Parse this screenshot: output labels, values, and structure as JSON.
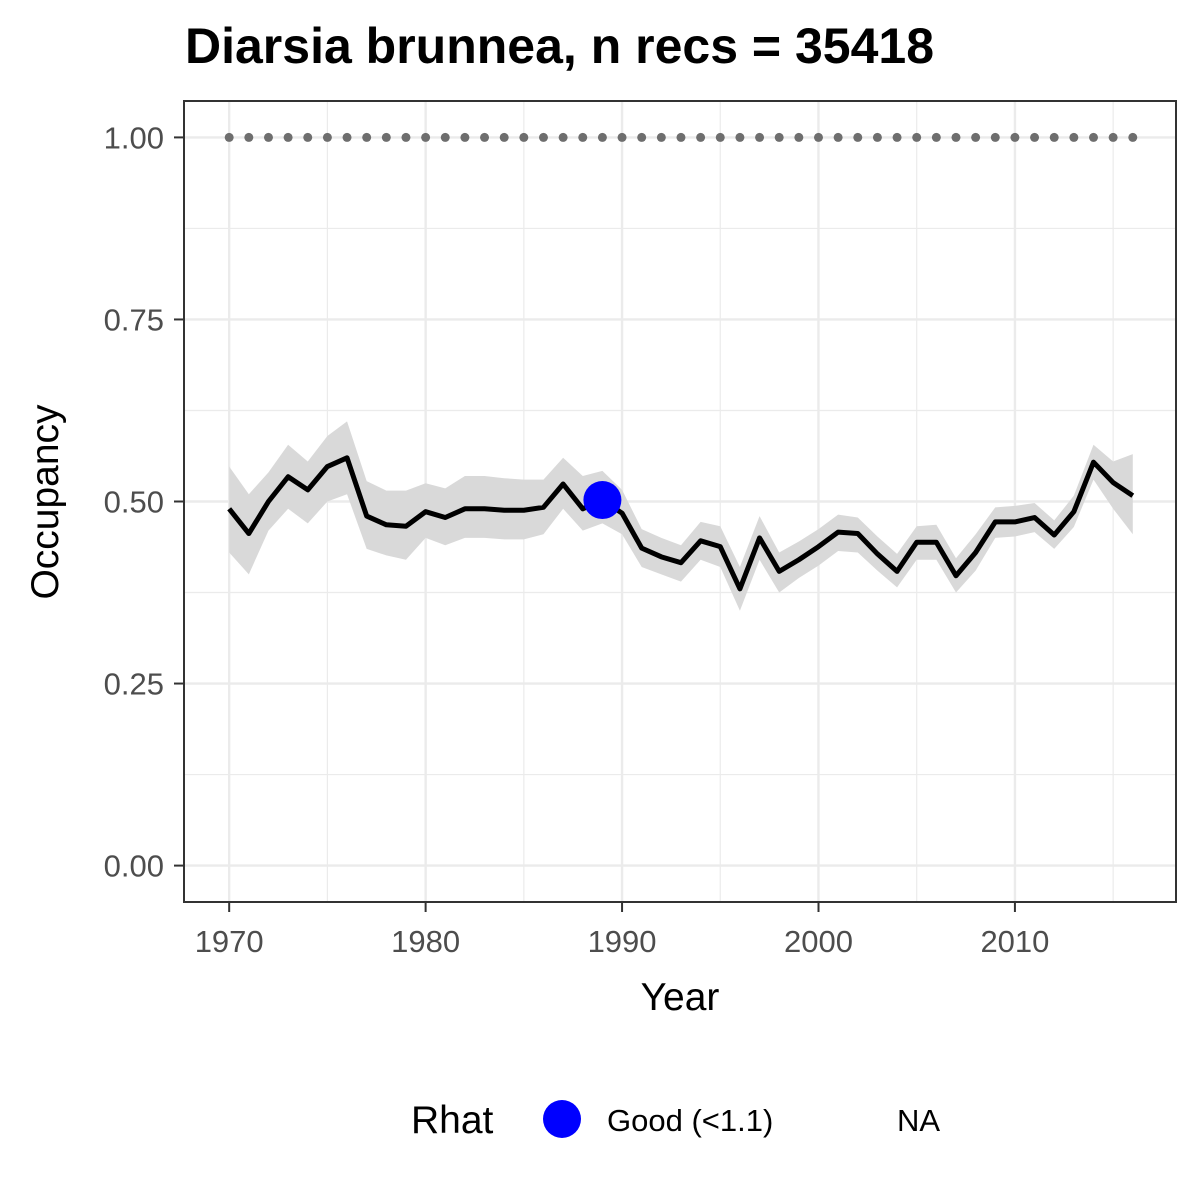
{
  "chart_data": {
    "type": "line",
    "title": "Diarsia brunnea, n recs = 35418",
    "xlabel": "Year",
    "ylabel": "Occupancy",
    "xlim": [
      1967.7,
      2018.2
    ],
    "ylim": [
      -0.05,
      1.05
    ],
    "x_ticks": [
      1970,
      1980,
      1990,
      2000,
      2010
    ],
    "x_tick_labels": [
      "1970",
      "1980",
      "1990",
      "2000",
      "2010"
    ],
    "y_ticks": [
      0,
      0.25,
      0.5,
      0.75,
      1.0
    ],
    "y_tick_labels": [
      "0.00",
      "0.25",
      "0.50",
      "0.75",
      "1.00"
    ],
    "grid": true,
    "colors": {
      "line": "#000000",
      "ribbon": "#d9d9d9",
      "reference": "#6e6e6e",
      "rhat_good": "#0000ff",
      "grid_major": "#ebebeb",
      "panel_border": "#333333"
    },
    "series": [
      {
        "years": [
          1970,
          1971,
          1972,
          1973,
          1974,
          1975,
          1976,
          1977,
          1978,
          1979,
          1980,
          1981,
          1982,
          1983,
          1984,
          1985,
          1986,
          1987,
          1988,
          1989,
          1990,
          1991,
          1992,
          1993,
          1994,
          1995,
          1996,
          1997,
          1998,
          1999,
          2000,
          2001,
          2002,
          2003,
          2004,
          2005,
          2006,
          2007,
          2008,
          2009,
          2010,
          2011,
          2012,
          2013,
          2014,
          2015,
          2016
        ],
        "mean": [
          0.49,
          0.456,
          0.5,
          0.534,
          0.516,
          0.548,
          0.56,
          0.48,
          0.468,
          0.466,
          0.486,
          0.478,
          0.49,
          0.49,
          0.488,
          0.488,
          0.492,
          0.524,
          0.49,
          0.502,
          0.484,
          0.436,
          0.424,
          0.416,
          0.446,
          0.438,
          0.38,
          0.45,
          0.404,
          0.42,
          0.438,
          0.458,
          0.456,
          0.428,
          0.404,
          0.444,
          0.444,
          0.398,
          0.43,
          0.472,
          0.472,
          0.478,
          0.454,
          0.486,
          0.554,
          0.526,
          0.508
        ],
        "lower": [
          0.43,
          0.4,
          0.46,
          0.49,
          0.47,
          0.5,
          0.51,
          0.435,
          0.426,
          0.42,
          0.45,
          0.44,
          0.45,
          0.45,
          0.448,
          0.448,
          0.455,
          0.49,
          0.46,
          0.47,
          0.455,
          0.41,
          0.4,
          0.39,
          0.42,
          0.41,
          0.35,
          0.42,
          0.375,
          0.395,
          0.412,
          0.432,
          0.43,
          0.405,
          0.382,
          0.42,
          0.42,
          0.375,
          0.405,
          0.45,
          0.452,
          0.458,
          0.435,
          0.465,
          0.53,
          0.49,
          0.455
        ],
        "upper": [
          0.548,
          0.51,
          0.54,
          0.578,
          0.555,
          0.59,
          0.61,
          0.528,
          0.515,
          0.515,
          0.525,
          0.518,
          0.535,
          0.535,
          0.532,
          0.53,
          0.53,
          0.56,
          0.535,
          0.542,
          0.516,
          0.462,
          0.45,
          0.44,
          0.472,
          0.466,
          0.41,
          0.48,
          0.43,
          0.445,
          0.462,
          0.482,
          0.478,
          0.452,
          0.428,
          0.466,
          0.468,
          0.422,
          0.455,
          0.492,
          0.494,
          0.498,
          0.474,
          0.508,
          0.578,
          0.555,
          0.565
        ]
      }
    ],
    "reference_line": {
      "y": 1.0,
      "x_from": 1970,
      "x_to": 2016,
      "step": 1
    },
    "rhat_points": [
      {
        "x": 1989,
        "y": 0.502,
        "category": "Good (<1.1)"
      }
    ],
    "legend": {
      "position": "bottom",
      "title": "Rhat",
      "entries": [
        "Good (<1.1)",
        "NA"
      ]
    }
  }
}
